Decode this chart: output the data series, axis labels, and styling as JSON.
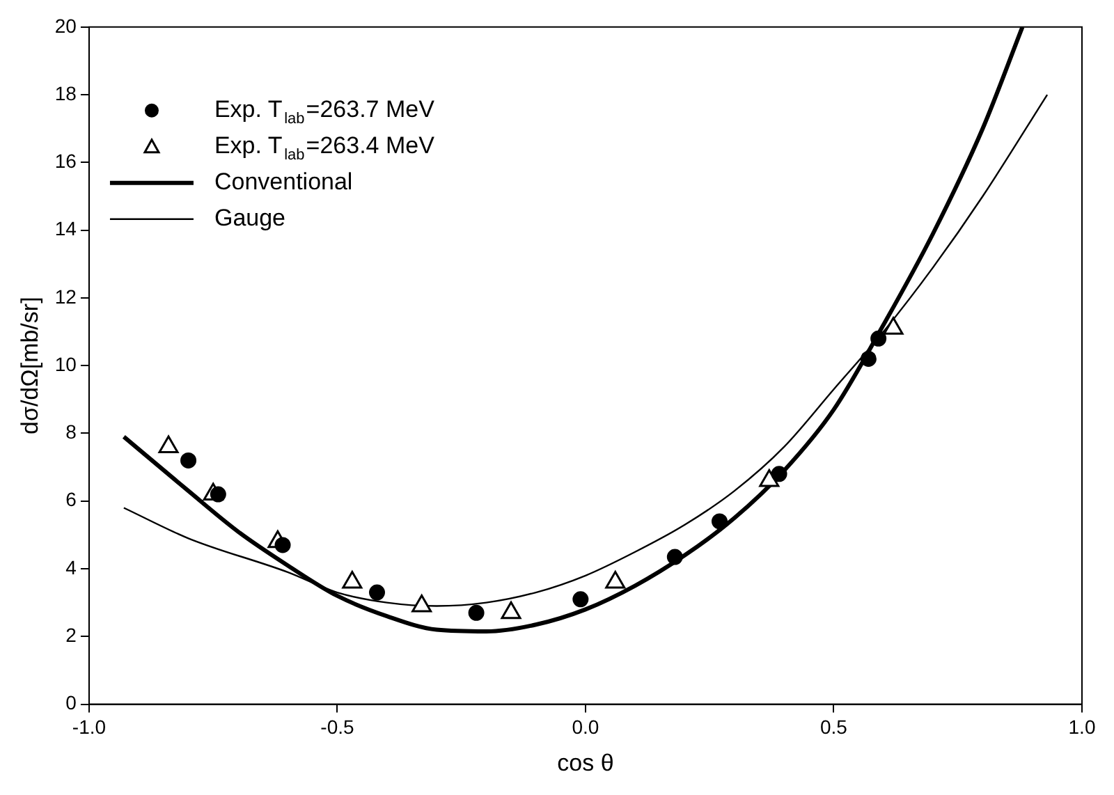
{
  "chart_data": {
    "type": "scatter",
    "xlabel": "cos θ",
    "ylabel": "dσ/dΩ[mb/sr]",
    "xlim": [
      -1,
      1
    ],
    "xticks": [
      {
        "value": -1,
        "label": "-1.0"
      },
      {
        "value": -0.5,
        "label": "-0.5"
      },
      {
        "value": 0,
        "label": "0.0"
      },
      {
        "value": 0.5,
        "label": "0.5"
      },
      {
        "value": 1,
        "label": "1.0"
      }
    ],
    "ylim": [
      0,
      20
    ],
    "yticks": [
      0,
      2,
      4,
      6,
      8,
      10,
      12,
      14,
      16,
      18,
      20
    ],
    "grid": false,
    "legend": "top left",
    "series": [
      {
        "name": "Exp. T$_{lab}$=263.7 MeV",
        "marker": "circle",
        "color": "#000000",
        "x": [
          -0.8,
          -0.74,
          -0.61,
          -0.42,
          -0.22,
          -0.01,
          0.18,
          0.27,
          0.39,
          0.57,
          0.59
        ],
        "values": [
          7.2,
          6.2,
          4.7,
          3.3,
          2.7,
          3.1,
          4.35,
          5.4,
          6.8,
          10.2,
          10.8
        ]
      },
      {
        "name": "Exp. T$_{lab}$=263.4 MeV",
        "marker": "triangle",
        "color": "#000000",
        "x": [
          -0.84,
          -0.75,
          -0.62,
          -0.47,
          -0.33,
          -0.15,
          0.06,
          0.37,
          0.62
        ],
        "values": [
          7.6,
          6.2,
          4.8,
          3.6,
          2.9,
          2.7,
          3.6,
          6.6,
          11.1
        ]
      },
      {
        "name": "Conventional",
        "type": "line",
        "marker": "none",
        "color": "#000000",
        "x": [
          -0.93,
          -0.8,
          -0.7,
          -0.6,
          -0.5,
          -0.4,
          -0.3,
          -0.2,
          -0.1,
          0,
          0.1,
          0.2,
          0.3,
          0.4,
          0.5,
          0.6,
          0.7,
          0.8,
          0.88
        ],
        "values": [
          7.9,
          6.3,
          5.1,
          4.1,
          3.2,
          2.6,
          2.2,
          2.15,
          2.35,
          2.8,
          3.5,
          4.4,
          5.5,
          6.9,
          8.7,
          11.2,
          13.9,
          17.0,
          20
        ]
      },
      {
        "name": "Gauge",
        "type": "line",
        "marker": "none",
        "color": "#000000",
        "x": [
          -0.93,
          -0.8,
          -0.6,
          -0.5,
          -0.4,
          -0.3,
          -0.2,
          -0.1,
          0,
          0.1,
          0.2,
          0.3,
          0.4,
          0.5,
          0.6,
          0.7,
          0.8,
          0.93
        ],
        "values": [
          5.8,
          4.9,
          3.9,
          3.3,
          3.0,
          2.9,
          3.0,
          3.3,
          3.8,
          4.5,
          5.3,
          6.3,
          7.6,
          9.3,
          11.0,
          12.9,
          15.0,
          18.0
        ]
      }
    ]
  }
}
